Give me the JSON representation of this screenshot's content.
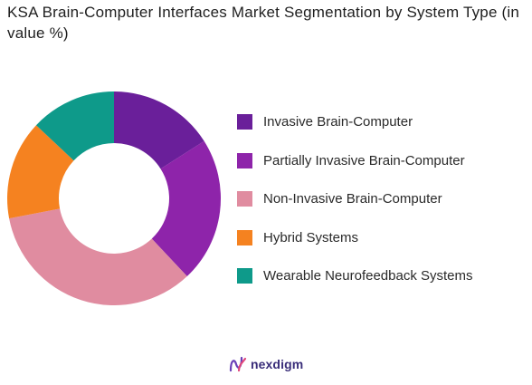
{
  "chart_data": {
    "type": "pie",
    "variant": "donut",
    "title": "KSA Brain-Computer Interfaces Market Segmentation by System Type (in value %)",
    "categories": [
      "Invasive Brain-Computer",
      "Partially Invasive Brain-Computer",
      "Non-Invasive Brain-Computer",
      "Hybrid Systems",
      "Wearable Neurofeedback Systems"
    ],
    "values": [
      16,
      22,
      34,
      15,
      13
    ],
    "colors": [
      "#6a1f9a",
      "#8e24aa",
      "#e08ca0",
      "#f58220",
      "#0e9a8a"
    ],
    "legend_position": "right"
  },
  "brand": {
    "name": "nexdigm",
    "color": "#3a2e7a"
  }
}
